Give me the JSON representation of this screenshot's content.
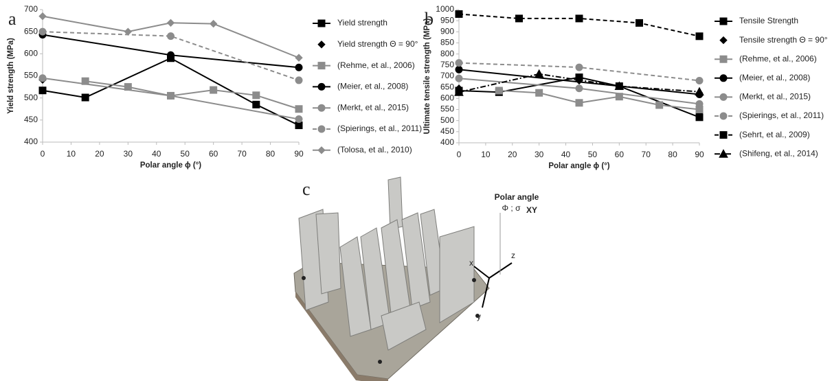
{
  "chart_data": [
    {
      "type": "line",
      "panel_label": "a",
      "x_label": "Polar angle ϕ (°)",
      "y_label": "Yield strength (MPa)",
      "xlim": [
        0,
        90
      ],
      "xticks": [
        0,
        10,
        20,
        30,
        40,
        50,
        60,
        70,
        80,
        90
      ],
      "ylim": [
        400,
        700
      ],
      "yticks": [
        400,
        450,
        500,
        550,
        600,
        650,
        700
      ],
      "series": [
        {
          "name": "Yield strength",
          "color": "#000000",
          "marker": "square",
          "dash": "solid",
          "x": [
            0,
            15,
            45,
            75,
            90
          ],
          "values": [
            517,
            501,
            590,
            485,
            438
          ]
        },
        {
          "name": "Yield strength Θ = 90°",
          "color": "#000000",
          "marker": "diamond",
          "dash": "none",
          "x": [
            0,
            45,
            90
          ],
          "values": [
            541,
            597,
            443
          ]
        },
        {
          "name": "(Rehme, et al., 2006)",
          "color": "#8c8c8c",
          "marker": "square",
          "dash": "solid",
          "x": [
            15,
            30,
            45,
            60,
            75,
            90
          ],
          "values": [
            538,
            525,
            505,
            518,
            506,
            475
          ]
        },
        {
          "name": "(Meier, et al., 2008)",
          "color": "#000000",
          "marker": "circle",
          "dash": "solid",
          "x": [
            0,
            45,
            90
          ],
          "values": [
            643,
            597,
            569
          ]
        },
        {
          "name": "(Merkt, et al., 2015)",
          "color": "#8c8c8c",
          "marker": "circle",
          "dash": "solid",
          "x": [
            0,
            45,
            90
          ],
          "values": [
            545,
            505,
            452
          ]
        },
        {
          "name": "(Spierings, et al., 2011)",
          "color": "#8c8c8c",
          "marker": "circle",
          "dash": "dashed",
          "x": [
            0,
            45,
            90
          ],
          "values": [
            650,
            640,
            540
          ]
        },
        {
          "name": "(Tolosa, et al., 2010)",
          "color": "#8c8c8c",
          "marker": "diamond",
          "dash": "solid",
          "x": [
            0,
            30,
            45,
            60,
            90
          ],
          "values": [
            685,
            650,
            670,
            668,
            591
          ]
        }
      ]
    },
    {
      "type": "line",
      "panel_label": "b",
      "x_label": "Polar angle ϕ (°)",
      "y_label": "Ultimate tensile strength (MPa)",
      "xlim": [
        0,
        90
      ],
      "xticks": [
        0,
        10,
        20,
        30,
        40,
        50,
        60,
        70,
        80,
        90
      ],
      "ylim": [
        400,
        1000
      ],
      "yticks": [
        400,
        450,
        500,
        550,
        600,
        650,
        700,
        750,
        800,
        850,
        900,
        950,
        1000
      ],
      "series": [
        {
          "name": "Tensile Strength",
          "color": "#000000",
          "marker": "square",
          "dash": "solid",
          "x": [
            0,
            15,
            45,
            60,
            90
          ],
          "values": [
            635,
            628,
            695,
            655,
            515
          ]
        },
        {
          "name": "Tensile strength Θ = 90°",
          "color": "#000000",
          "marker": "diamond",
          "dash": "none",
          "x": [
            0,
            45,
            90
          ],
          "values": [
            645,
            680,
            535
          ]
        },
        {
          "name": "(Rehme, et al., 2006)",
          "color": "#8c8c8c",
          "marker": "square",
          "dash": "solid",
          "x": [
            15,
            30,
            45,
            60,
            75,
            90
          ],
          "values": [
            635,
            625,
            580,
            608,
            570,
            550
          ]
        },
        {
          "name": "(Meier, et al., 2008)",
          "color": "#000000",
          "marker": "circle",
          "dash": "solid",
          "x": [
            0,
            90
          ],
          "values": [
            730,
            618
          ]
        },
        {
          "name": "(Merkt, et al., 2015)",
          "color": "#8c8c8c",
          "marker": "circle",
          "dash": "solid",
          "x": [
            0,
            45,
            90
          ],
          "values": [
            690,
            645,
            575
          ]
        },
        {
          "name": "(Spierings, et al., 2011)",
          "color": "#8c8c8c",
          "marker": "circle",
          "dash": "dashed",
          "x": [
            0,
            45,
            90
          ],
          "values": [
            760,
            740,
            680
          ]
        },
        {
          "name": "(Sehrt, et al., 2009)",
          "color": "#000000",
          "marker": "square",
          "dash": "dashed",
          "x": [
            0,
            22.5,
            45,
            67.5,
            90
          ],
          "values": [
            980,
            960,
            960,
            940,
            880
          ]
        },
        {
          "name": "(Shifeng, et al., 2014)",
          "color": "#000000",
          "marker": "triangle",
          "dash": "dashdot",
          "x": [
            0,
            30,
            60,
            90
          ],
          "values": [
            628,
            710,
            655,
            630
          ]
        }
      ]
    }
  ],
  "photo": {
    "panel_label": "c",
    "angle_title": "Polar angle",
    "angle_symbol": "Φ ; σ",
    "angle_subscript": "XY",
    "axis_x": "x",
    "axis_y": "y",
    "axis_z": "z"
  }
}
